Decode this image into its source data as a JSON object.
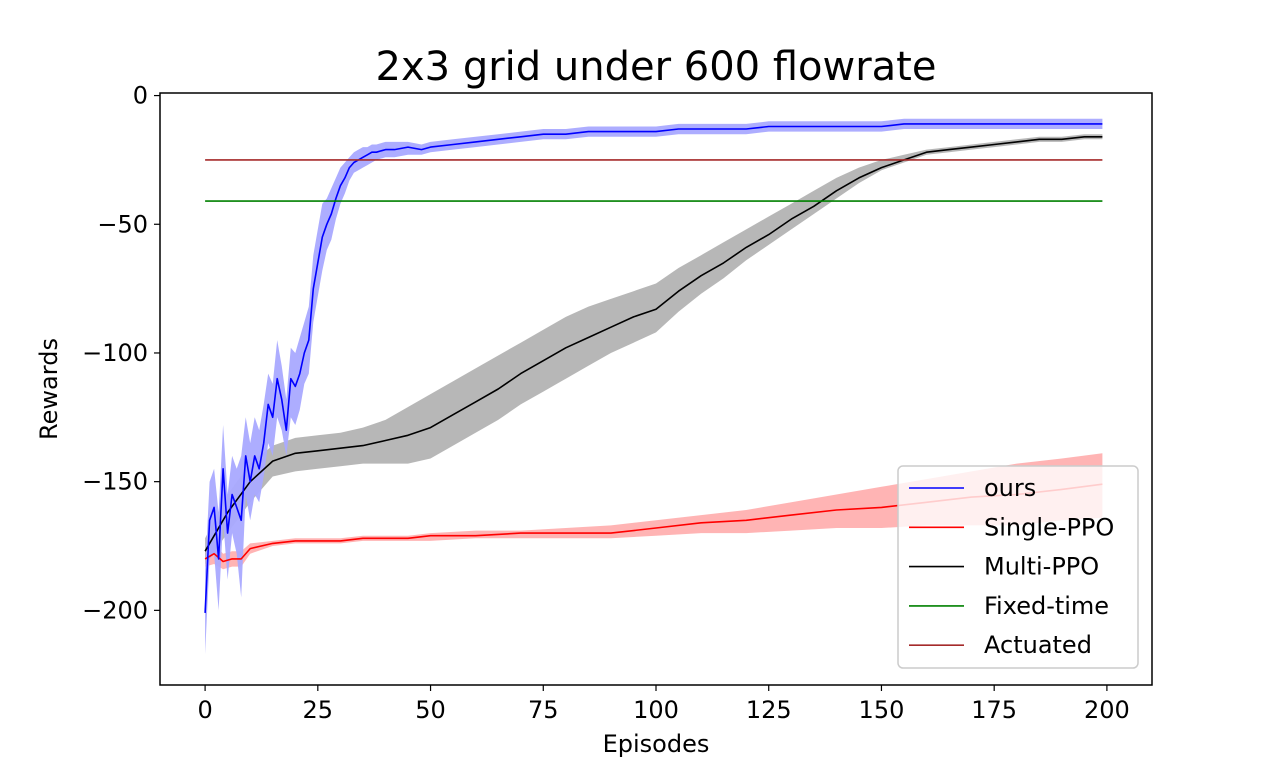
{
  "chart_data": {
    "type": "line",
    "title": "2x3 grid under 600 flowrate",
    "xlabel": "Episodes",
    "ylabel": "Rewards",
    "xlim": [
      -10,
      210
    ],
    "ylim": [
      -229,
      1
    ],
    "xticks": [
      0,
      25,
      50,
      75,
      100,
      125,
      150,
      175,
      200
    ],
    "yticks": [
      0,
      -50,
      -100,
      -150,
      -200
    ],
    "xtick_labels": [
      "0",
      "25",
      "50",
      "75",
      "100",
      "125",
      "150",
      "175",
      "200"
    ],
    "ytick_labels": [
      "0",
      "−50",
      "−100",
      "−150",
      "−200"
    ],
    "grid": false,
    "legend_position": "lower-right",
    "series": [
      {
        "name": "ours",
        "color": "#0000ff",
        "band_color": "#a9a9ff",
        "x": [
          0,
          1,
          2,
          3,
          4,
          5,
          6,
          7,
          8,
          9,
          10,
          11,
          12,
          13,
          14,
          15,
          16,
          17,
          18,
          19,
          20,
          21,
          22,
          23,
          24,
          25,
          26,
          27,
          28,
          29,
          30,
          31,
          32,
          33,
          34,
          35,
          36,
          37,
          38,
          40,
          42,
          45,
          48,
          50,
          55,
          60,
          65,
          70,
          75,
          80,
          85,
          90,
          95,
          100,
          105,
          110,
          115,
          120,
          125,
          130,
          135,
          140,
          145,
          150,
          155,
          160,
          165,
          170,
          175,
          180,
          185,
          190,
          195,
          199
        ],
        "mean": [
          -201,
          -165,
          -160,
          -180,
          -145,
          -170,
          -155,
          -160,
          -165,
          -140,
          -150,
          -140,
          -145,
          -135,
          -120,
          -125,
          -110,
          -118,
          -130,
          -110,
          -113,
          -108,
          -100,
          -95,
          -75,
          -65,
          -55,
          -50,
          -46,
          -40,
          -35,
          -32,
          -28,
          -26,
          -25,
          -24,
          -23,
          -22,
          -22,
          -21,
          -21,
          -20,
          -21,
          -20,
          -19,
          -18,
          -17,
          -16,
          -15,
          -15,
          -14,
          -14,
          -14,
          -14,
          -13,
          -13,
          -13,
          -13,
          -12,
          -12,
          -12,
          -12,
          -12,
          -12,
          -11,
          -11,
          -11,
          -11,
          -11,
          -11,
          -11,
          -11,
          -11,
          -11
        ],
        "lower": [
          -217,
          -180,
          -178,
          -200,
          -165,
          -188,
          -170,
          -178,
          -195,
          -155,
          -165,
          -155,
          -158,
          -148,
          -135,
          -140,
          -125,
          -130,
          -140,
          -125,
          -128,
          -122,
          -112,
          -108,
          -88,
          -78,
          -68,
          -60,
          -56,
          -48,
          -42,
          -38,
          -33,
          -30,
          -29,
          -28,
          -27,
          -26,
          -25,
          -24,
          -24,
          -23,
          -23,
          -22,
          -21,
          -20,
          -19,
          -18,
          -17,
          -17,
          -16,
          -16,
          -16,
          -16,
          -15,
          -15,
          -15,
          -15,
          -14,
          -14,
          -14,
          -14,
          -14,
          -14,
          -13,
          -13,
          -13,
          -13,
          -13,
          -13,
          -13,
          -13,
          -13,
          -13
        ],
        "upper": [
          -185,
          -150,
          -145,
          -162,
          -128,
          -155,
          -140,
          -145,
          -140,
          -125,
          -135,
          -125,
          -130,
          -120,
          -108,
          -112,
          -95,
          -105,
          -118,
          -98,
          -100,
          -94,
          -88,
          -82,
          -62,
          -52,
          -42,
          -40,
          -36,
          -32,
          -28,
          -26,
          -24,
          -22,
          -21,
          -20,
          -20,
          -19,
          -19,
          -18,
          -18,
          -18,
          -19,
          -18,
          -17,
          -16,
          -15,
          -14,
          -13,
          -13,
          -12,
          -12,
          -12,
          -12,
          -11,
          -11,
          -11,
          -11,
          -10,
          -10,
          -10,
          -10,
          -10,
          -10,
          -9,
          -9,
          -9,
          -9,
          -9,
          -9,
          -9,
          -9,
          -9,
          -9
        ]
      },
      {
        "name": "Single-PPO",
        "color": "#ff0000",
        "band_color": "#ffb0b0",
        "x": [
          0,
          2,
          4,
          6,
          8,
          10,
          15,
          20,
          25,
          30,
          35,
          40,
          45,
          50,
          60,
          70,
          80,
          90,
          100,
          110,
          120,
          130,
          140,
          150,
          160,
          170,
          180,
          190,
          199
        ],
        "mean": [
          -180,
          -178,
          -181,
          -180,
          -180,
          -176,
          -174,
          -173,
          -173,
          -173,
          -172,
          -172,
          -172,
          -171,
          -171,
          -170,
          -170,
          -170,
          -168,
          -166,
          -165,
          -163,
          -161,
          -160,
          -158,
          -156,
          -155,
          -153,
          -151
        ],
        "lower": [
          -183,
          -182,
          -184,
          -183,
          -183,
          -178,
          -175,
          -174,
          -174,
          -174,
          -173,
          -173,
          -173,
          -173,
          -172,
          -172,
          -172,
          -172,
          -171,
          -170,
          -170,
          -169,
          -168,
          -168,
          -167,
          -167,
          -167,
          -165,
          -164
        ],
        "upper": [
          -177,
          -174,
          -178,
          -177,
          -177,
          -174,
          -173,
          -172,
          -172,
          -172,
          -171,
          -171,
          -171,
          -170,
          -169,
          -169,
          -168,
          -167,
          -165,
          -163,
          -161,
          -158,
          -155,
          -152,
          -149,
          -146,
          -143,
          -141,
          -139
        ]
      },
      {
        "name": "Multi-PPO",
        "color": "#000000",
        "band_color": "#b3b3b3",
        "x": [
          0,
          5,
          10,
          15,
          20,
          25,
          30,
          35,
          40,
          45,
          50,
          55,
          60,
          65,
          70,
          75,
          80,
          85,
          90,
          95,
          100,
          105,
          110,
          115,
          120,
          125,
          130,
          135,
          140,
          145,
          150,
          155,
          160,
          165,
          170,
          175,
          180,
          185,
          190,
          195,
          199
        ],
        "mean": [
          -177,
          -162,
          -150,
          -142,
          -139,
          -138,
          -137,
          -136,
          -134,
          -132,
          -129,
          -124,
          -119,
          -114,
          -108,
          -103,
          -98,
          -94,
          -90,
          -86,
          -83,
          -76,
          -70,
          -65,
          -59,
          -54,
          -48,
          -43,
          -37,
          -32,
          -28,
          -25,
          -22,
          -21,
          -20,
          -19,
          -18,
          -17,
          -17,
          -16,
          -16
        ],
        "lower": [
          -182,
          -170,
          -158,
          -148,
          -146,
          -145,
          -144,
          -143,
          -143,
          -143,
          -141,
          -136,
          -131,
          -126,
          -120,
          -115,
          -110,
          -105,
          -100,
          -96,
          -92,
          -84,
          -77,
          -71,
          -64,
          -58,
          -52,
          -46,
          -40,
          -34,
          -29,
          -26,
          -23,
          -22,
          -21,
          -20,
          -19,
          -18,
          -18,
          -17,
          -17
        ],
        "upper": [
          -172,
          -155,
          -143,
          -136,
          -133,
          -132,
          -131,
          -129,
          -126,
          -121,
          -116,
          -111,
          -106,
          -101,
          -96,
          -91,
          -86,
          -82,
          -79,
          -76,
          -73,
          -67,
          -62,
          -57,
          -52,
          -47,
          -42,
          -37,
          -32,
          -28,
          -25,
          -23,
          -21,
          -20,
          -19,
          -18,
          -17,
          -16,
          -16,
          -15,
          -15
        ]
      },
      {
        "name": "Fixed-time",
        "color": "#008000",
        "x": [
          0,
          199
        ],
        "mean": [
          -41,
          -41
        ]
      },
      {
        "name": "Actuated",
        "color": "#a52a2a",
        "x": [
          0,
          199
        ],
        "mean": [
          -25,
          -25
        ]
      }
    ]
  }
}
